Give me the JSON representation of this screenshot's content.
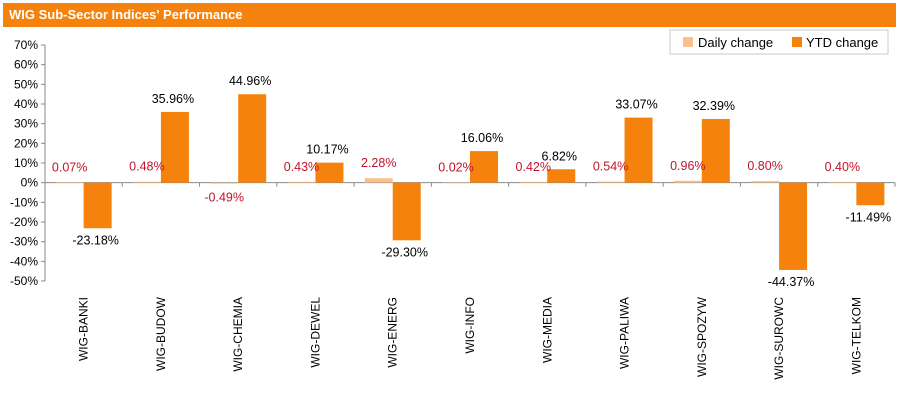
{
  "header": {
    "title": "WIG Sub-Sector Indices' Performance"
  },
  "colors": {
    "title_bar": "#f5820c",
    "daily": "#f8c08e",
    "ytd": "#f5820c",
    "daily_label": "#c0142b",
    "ytd_label": "#000000"
  },
  "chart_data": {
    "type": "bar",
    "categories": [
      "WIG-BANKI",
      "WIG-BUDOW",
      "WIG-CHEMIA",
      "WIG-DEWEL",
      "WIG-ENERG",
      "WIG-INFO",
      "WIG-MEDIA",
      "WIG-PALIWA",
      "WIG-SPOZYW",
      "WIG-SUROWC",
      "WIG-TELKOM"
    ],
    "series": [
      {
        "name": "Daily change",
        "values": [
          0.07,
          0.48,
          -0.49,
          0.43,
          2.28,
          0.02,
          0.42,
          0.54,
          0.96,
          0.8,
          0.4
        ],
        "labels": [
          "0.07%",
          "0.48%",
          "-0.49%",
          "0.43%",
          "2.28%",
          "0.02%",
          "0.42%",
          "0.54%",
          "0.96%",
          "0.80%",
          "0.40%"
        ]
      },
      {
        "name": "YTD change",
        "values": [
          -23.18,
          35.96,
          44.96,
          10.17,
          -29.3,
          16.06,
          6.82,
          33.07,
          32.39,
          -44.37,
          -11.49
        ],
        "labels": [
          "-23.18%",
          "35.96%",
          "44.96%",
          "10.17%",
          "-29.30%",
          "16.06%",
          "6.82%",
          "33.07%",
          "32.39%",
          "-44.37%",
          "-11.49%"
        ]
      }
    ],
    "yticks": [
      "-50%",
      "-40%",
      "-30%",
      "-20%",
      "-10%",
      "0%",
      "10%",
      "20%",
      "30%",
      "40%",
      "50%",
      "60%",
      "70%"
    ],
    "ylim": [
      -50,
      70
    ],
    "legend": "top-right",
    "grid": false
  }
}
